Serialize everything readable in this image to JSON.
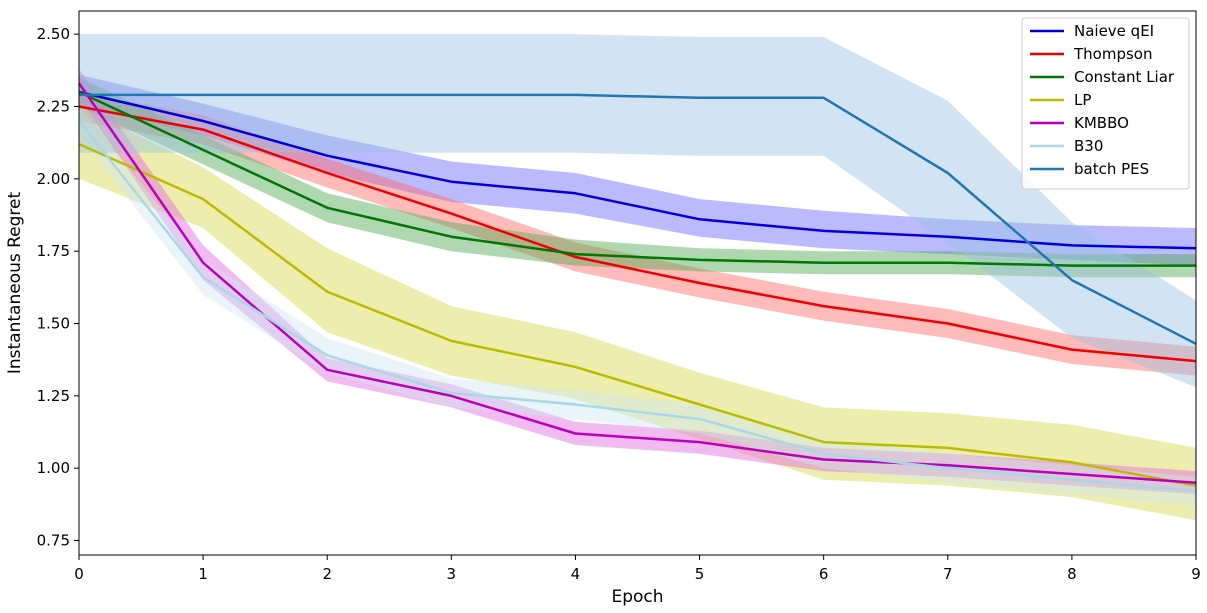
{
  "chart_data": {
    "type": "line",
    "title": "",
    "xlabel": "Epoch",
    "ylabel": "Instantaneous Regret",
    "xlim": [
      0,
      9
    ],
    "ylim": [
      0.7,
      2.58
    ],
    "xticks": [
      0,
      1,
      2,
      3,
      4,
      5,
      6,
      7,
      8,
      9
    ],
    "xtick_labels": [
      "0",
      "1",
      "2",
      "3",
      "4",
      "5",
      "6",
      "7",
      "8",
      "9"
    ],
    "yticks": [
      0.75,
      1.0,
      1.25,
      1.5,
      1.75,
      2.0,
      2.25,
      2.5
    ],
    "ytick_labels": [
      "0.75",
      "1.00",
      "1.25",
      "1.50",
      "1.75",
      "2.00",
      "2.25",
      "2.50"
    ],
    "grid": false,
    "legend_position": "top-right",
    "x": [
      0,
      1,
      2,
      3,
      4,
      5,
      6,
      7,
      8,
      9
    ],
    "series": [
      {
        "name": "Naieve qEI",
        "color": "#0000dd",
        "band_color": "#6666ff",
        "values": [
          2.3,
          2.2,
          2.08,
          1.99,
          1.95,
          1.86,
          1.82,
          1.8,
          1.77,
          1.76
        ],
        "lower": [
          2.25,
          2.15,
          2.02,
          1.92,
          1.88,
          1.8,
          1.76,
          1.74,
          1.72,
          1.7
        ],
        "upper": [
          2.36,
          2.26,
          2.15,
          2.06,
          2.02,
          1.93,
          1.89,
          1.86,
          1.84,
          1.83
        ]
      },
      {
        "name": "Thompson",
        "color": "#ee0000",
        "band_color": "#ff6666",
        "values": [
          2.25,
          2.17,
          2.02,
          1.88,
          1.73,
          1.64,
          1.56,
          1.5,
          1.41,
          1.37
        ],
        "lower": [
          2.2,
          2.12,
          1.97,
          1.83,
          1.68,
          1.59,
          1.51,
          1.45,
          1.36,
          1.32
        ],
        "upper": [
          2.3,
          2.22,
          2.07,
          1.93,
          1.78,
          1.69,
          1.61,
          1.55,
          1.46,
          1.42
        ]
      },
      {
        "name": "Constant Liar",
        "color": "#007700",
        "band_color": "#4fa84f",
        "values": [
          2.3,
          2.1,
          1.9,
          1.8,
          1.74,
          1.72,
          1.71,
          1.71,
          1.7,
          1.7
        ],
        "lower": [
          2.25,
          2.05,
          1.85,
          1.75,
          1.7,
          1.68,
          1.67,
          1.67,
          1.66,
          1.66
        ],
        "upper": [
          2.35,
          2.15,
          1.95,
          1.85,
          1.79,
          1.76,
          1.75,
          1.75,
          1.74,
          1.74
        ]
      },
      {
        "name": "LP",
        "color": "#bbbb00",
        "band_color": "#d6d64a",
        "values": [
          2.12,
          1.93,
          1.61,
          1.44,
          1.35,
          1.22,
          1.09,
          1.07,
          1.02,
          0.94
        ],
        "lower": [
          2.0,
          1.83,
          1.47,
          1.32,
          1.24,
          1.1,
          0.96,
          0.94,
          0.9,
          0.82
        ],
        "upper": [
          2.25,
          2.04,
          1.76,
          1.56,
          1.47,
          1.33,
          1.21,
          1.19,
          1.15,
          1.07
        ]
      },
      {
        "name": "KMBBO",
        "color": "#bb00bb",
        "band_color": "#e066e0",
        "values": [
          2.33,
          1.71,
          1.34,
          1.25,
          1.12,
          1.09,
          1.03,
          1.01,
          0.98,
          0.95
        ],
        "lower": [
          2.28,
          1.65,
          1.3,
          1.21,
          1.08,
          1.05,
          0.99,
          0.97,
          0.94,
          0.91
        ],
        "upper": [
          2.38,
          1.77,
          1.38,
          1.29,
          1.16,
          1.13,
          1.07,
          1.05,
          1.02,
          0.99
        ]
      },
      {
        "name": "B30",
        "color": "#a8d8e6",
        "band_color": "#cfe9f2",
        "values": [
          2.2,
          1.66,
          1.39,
          1.26,
          1.22,
          1.17,
          1.05,
          1.0,
          0.96,
          0.92
        ],
        "lower": [
          2.15,
          1.6,
          1.33,
          1.21,
          1.17,
          1.12,
          1.0,
          0.95,
          0.91,
          0.87
        ],
        "upper": [
          2.25,
          1.72,
          1.45,
          1.31,
          1.27,
          1.22,
          1.1,
          1.05,
          1.01,
          0.97
        ]
      },
      {
        "name": "batch PES",
        "color": "#1f77b4",
        "band_color": "#9cc3e0",
        "values": [
          2.29,
          2.29,
          2.29,
          2.29,
          2.29,
          2.28,
          2.28,
          2.02,
          1.65,
          1.43
        ],
        "lower": [
          2.09,
          2.09,
          2.09,
          2.09,
          2.09,
          2.08,
          2.08,
          1.78,
          1.45,
          1.28
        ],
        "upper": [
          2.5,
          2.5,
          2.5,
          2.5,
          2.5,
          2.49,
          2.49,
          2.27,
          1.85,
          1.58
        ]
      }
    ]
  }
}
